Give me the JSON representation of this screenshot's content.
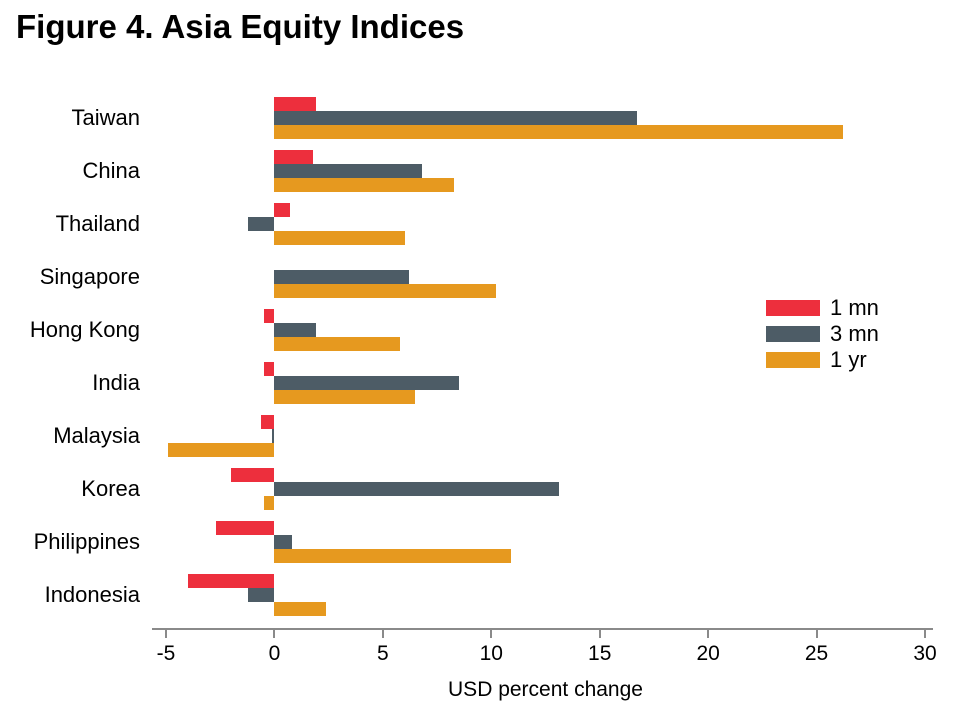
{
  "title": "Figure 4. Asia Equity Indices",
  "colors": {
    "series_1mn": "#ED2F3D",
    "series_3mn": "#4D5C66",
    "series_1yr": "#E6991F",
    "axis": "#8A8A8A",
    "text": "#000000",
    "background": "#FFFFFF"
  },
  "chart_data": {
    "type": "bar",
    "orientation": "horizontal",
    "title": "Figure 4. Asia Equity Indices",
    "xlabel": "USD percent change",
    "ylabel": "",
    "xlim": [
      -5,
      30
    ],
    "xticks": [
      -5,
      0,
      5,
      10,
      15,
      20,
      25,
      30
    ],
    "grid": false,
    "legend_position": "middle-right",
    "categories": [
      "Taiwan",
      "China",
      "Thailand",
      "Singapore",
      "Hong Kong",
      "India",
      "Malaysia",
      "Korea",
      "Philippines",
      "Indonesia"
    ],
    "series": [
      {
        "name": "1 mn",
        "color": "#ED2F3D",
        "values": [
          1.9,
          1.8,
          0.7,
          0,
          -0.5,
          -0.5,
          -0.6,
          -2.0,
          -2.7,
          -4.0
        ]
      },
      {
        "name": "3 mn",
        "color": "#4D5C66",
        "values": [
          16.7,
          6.8,
          -1.2,
          6.2,
          1.9,
          8.5,
          -0.1,
          13.1,
          0.8,
          -1.2
        ]
      },
      {
        "name": "1 yr",
        "color": "#E6991F",
        "values": [
          26.2,
          8.3,
          6.0,
          10.2,
          5.8,
          6.5,
          -4.9,
          -0.5,
          10.9,
          2.4
        ]
      }
    ]
  }
}
